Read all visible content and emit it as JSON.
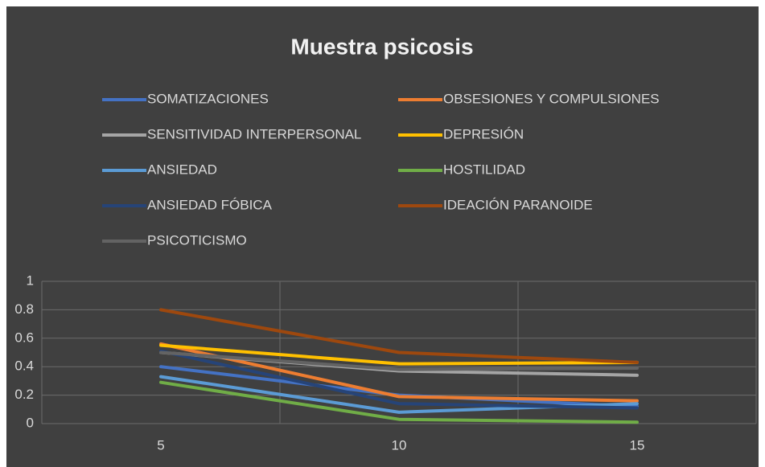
{
  "chart_data": {
    "type": "line",
    "title": "Muestra psicosis",
    "categories": [
      "5",
      "10",
      "15"
    ],
    "series": [
      {
        "name": "SOMATIZACIONES",
        "color": "#4472c4",
        "values": [
          0.4,
          0.2,
          0.12
        ]
      },
      {
        "name": "OBSESIONES Y COMPULSIONES",
        "color": "#ed7d31",
        "values": [
          0.56,
          0.19,
          0.16
        ]
      },
      {
        "name": "SENSITIVIDAD INTERPERSONAL",
        "color": "#a5a5a5",
        "values": [
          0.5,
          0.37,
          0.34
        ]
      },
      {
        "name": "DEPRESIÓN",
        "color": "#ffc000",
        "values": [
          0.55,
          0.42,
          0.43
        ]
      },
      {
        "name": "ANSIEDAD",
        "color": "#5b9bd5",
        "values": [
          0.33,
          0.08,
          0.14
        ]
      },
      {
        "name": "HOSTILIDAD",
        "color": "#70ad47",
        "values": [
          0.29,
          0.03,
          0.01
        ]
      },
      {
        "name": "ANSIEDAD FÓBICA",
        "color": "#264478",
        "values": [
          0.51,
          0.14,
          0.11
        ]
      },
      {
        "name": "IDEACIÓN PARANOIDE",
        "color": "#9e480e",
        "values": [
          0.8,
          0.5,
          0.43
        ]
      },
      {
        "name": "PSICOTICISMO",
        "color": "#636363",
        "values": [
          0.5,
          0.38,
          0.39
        ]
      }
    ],
    "ylim": [
      0,
      1
    ],
    "yticks": [
      0,
      {
        "value": 0.2,
        "label": "0.2"
      },
      {
        "value": 0.4,
        "label": "0.4"
      },
      {
        "value": 0.6,
        "label": "0.6"
      },
      {
        "value": 0.8,
        "label": "0.8"
      },
      1
    ],
    "grid": true
  }
}
